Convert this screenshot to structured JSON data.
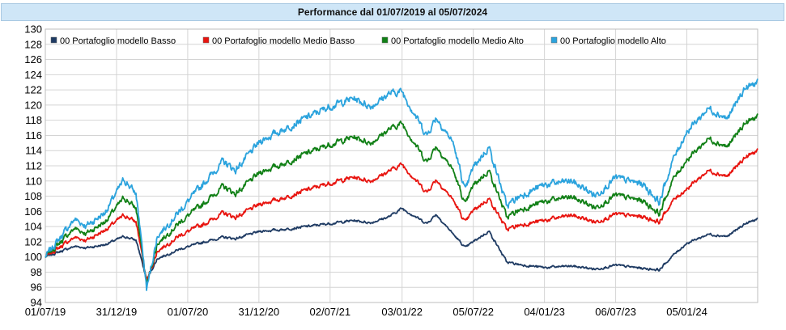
{
  "title": "Performance dal 01/07/2019 al 05/07/2024",
  "chart_data": {
    "type": "line",
    "title": "Performance dal 01/07/2019 al 05/07/2024",
    "xlabel": "",
    "ylabel": "",
    "x_tick_labels": [
      "01/07/19",
      "31/12/19",
      "01/07/20",
      "31/12/20",
      "02/07/21",
      "03/01/22",
      "05/07/22",
      "04/01/23",
      "06/07/23",
      "05/01/24"
    ],
    "x_tick_dates": [
      "2019-07-01",
      "2019-12-31",
      "2020-07-01",
      "2020-12-31",
      "2021-07-02",
      "2022-01-03",
      "2022-07-05",
      "2023-01-04",
      "2023-07-06",
      "2024-01-05"
    ],
    "x_range": [
      "2019-07-01",
      "2024-07-05"
    ],
    "ylim": [
      94,
      130
    ],
    "y_ticks": [
      "94",
      "96",
      "98",
      "100",
      "102",
      "104",
      "106",
      "108",
      "110",
      "112",
      "114",
      "116",
      "118",
      "120",
      "122",
      "124",
      "126",
      "128",
      "130"
    ],
    "grid": true,
    "legend_position": "top-left",
    "x": [
      "2019-07-01",
      "2019-09-15",
      "2019-10-15",
      "2019-12-01",
      "2020-01-20",
      "2020-02-20",
      "2020-03-18",
      "2020-04-15",
      "2020-06-10",
      "2020-08-15",
      "2020-10-01",
      "2020-11-01",
      "2021-01-05",
      "2021-03-01",
      "2021-05-01",
      "2021-07-01",
      "2021-09-01",
      "2021-10-15",
      "2021-12-01",
      "2022-01-03",
      "2022-03-08",
      "2022-04-01",
      "2022-05-15",
      "2022-06-15",
      "2022-07-05",
      "2022-08-15",
      "2022-09-30",
      "2022-11-01",
      "2023-01-04",
      "2023-03-15",
      "2023-05-15",
      "2023-07-06",
      "2023-09-15",
      "2023-10-27",
      "2023-12-01",
      "2024-01-05",
      "2024-03-01",
      "2024-04-19",
      "2024-06-01",
      "2024-07-05"
    ],
    "series": [
      {
        "name": "00 Portafoglio modello Basso",
        "color": "#1f3b63",
        "values": [
          100.0,
          101.4,
          101.2,
          101.6,
          102.7,
          102.2,
          97.0,
          99.8,
          101.0,
          102.0,
          102.6,
          102.4,
          103.4,
          103.6,
          104.0,
          104.4,
          104.8,
          104.5,
          105.3,
          106.4,
          104.4,
          105.6,
          103.0,
          101.2,
          102.0,
          103.4,
          99.3,
          99.0,
          98.6,
          98.8,
          98.4,
          98.9,
          98.5,
          98.3,
          100.2,
          101.8,
          103.0,
          102.7,
          104.3,
          105.0
        ]
      },
      {
        "name": "00 Portafoglio modello Medio Basso",
        "color": "#e8140f",
        "values": [
          100.0,
          102.6,
          102.2,
          103.5,
          105.5,
          104.6,
          96.8,
          100.8,
          102.8,
          104.4,
          105.8,
          105.2,
          107.0,
          107.7,
          108.8,
          109.7,
          110.5,
          110.0,
          111.3,
          112.2,
          108.5,
          110.2,
          107.5,
          104.5,
          106.1,
          107.7,
          103.6,
          104.2,
          104.8,
          105.5,
          104.6,
          105.6,
          105.3,
          104.6,
          107.4,
          109.0,
          111.4,
          110.6,
          113.0,
          114.0
        ]
      },
      {
        "name": "00 Portafoglio modello Medio Alto",
        "color": "#118016",
        "values": [
          100.0,
          103.8,
          103.1,
          104.6,
          107.8,
          106.4,
          96.3,
          101.8,
          104.5,
          107.2,
          109.3,
          108.3,
          111.2,
          112.2,
          113.6,
          114.8,
          115.8,
          115.0,
          116.8,
          117.6,
          112.5,
          114.6,
          111.4,
          106.8,
          109.4,
          111.4,
          105.2,
          106.2,
          107.3,
          107.9,
          106.5,
          108.1,
          107.4,
          105.7,
          110.2,
          112.8,
          115.6,
          114.5,
          117.5,
          118.5
        ]
      },
      {
        "name": "00 Portafoglio modello Alto",
        "color": "#2ba3dd",
        "values": [
          100.0,
          105.0,
          104.1,
          105.8,
          110.2,
          108.3,
          95.8,
          102.8,
          106.0,
          109.9,
          112.6,
          111.4,
          115.3,
          116.7,
          118.3,
          119.8,
          120.9,
          119.8,
          121.5,
          121.8,
          116.0,
          118.4,
          115.0,
          108.6,
          111.8,
          114.5,
          106.7,
          108.0,
          109.5,
          110.0,
          108.1,
          110.4,
          109.6,
          107.2,
          112.8,
          116.5,
          119.6,
          118.2,
          122.1,
          123.0
        ]
      }
    ]
  },
  "legend": {
    "items": [
      {
        "label": "00 Portafoglio modello Basso",
        "color": "#1f3b63"
      },
      {
        "label": "00 Portafoglio modello Medio Basso",
        "color": "#e8140f"
      },
      {
        "label": "00 Portafoglio modello Medio Alto",
        "color": "#118016"
      },
      {
        "label": "00 Portafoglio modello Alto",
        "color": "#2ba3dd"
      }
    ]
  }
}
